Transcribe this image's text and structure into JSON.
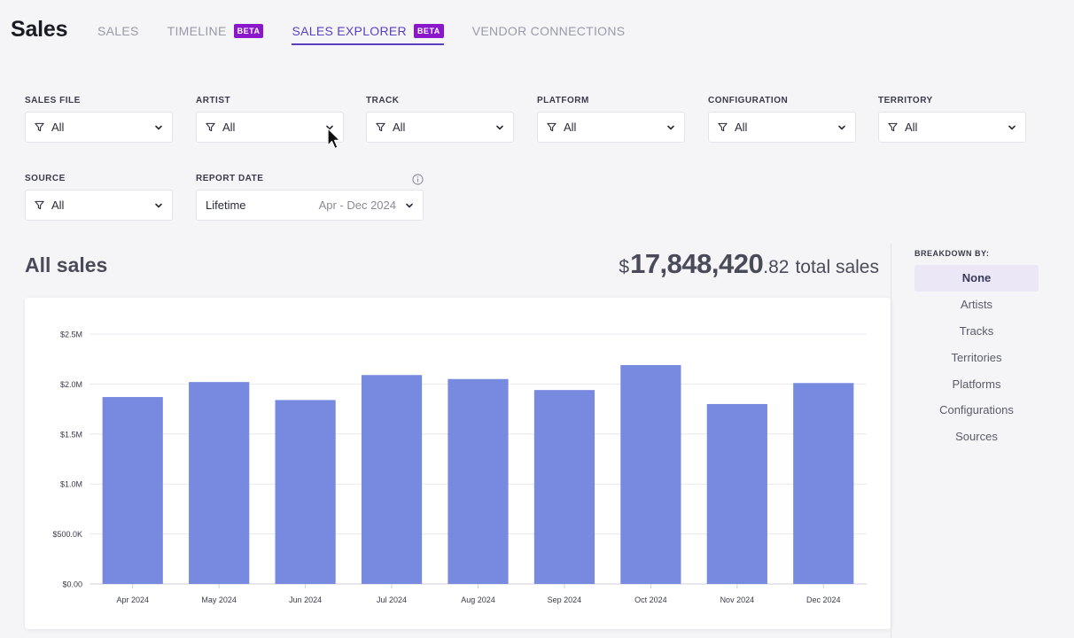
{
  "header": {
    "title": "Sales",
    "tabs": [
      {
        "label": "SALES",
        "badge": ""
      },
      {
        "label": "TIMELINE",
        "badge": "BETA"
      },
      {
        "label": "SALES EXPLORER",
        "badge": "BETA"
      },
      {
        "label": "VENDOR CONNECTIONS",
        "badge": ""
      }
    ],
    "active_tab": 2
  },
  "filters": {
    "sales_file": {
      "label": "SALES FILE",
      "value": "All"
    },
    "artist": {
      "label": "ARTIST",
      "value": "All"
    },
    "track": {
      "label": "TRACK",
      "value": "All"
    },
    "platform": {
      "label": "PLATFORM",
      "value": "All"
    },
    "configuration": {
      "label": "CONFIGURATION",
      "value": "All"
    },
    "territory": {
      "label": "TERRITORY",
      "value": "All"
    },
    "source": {
      "label": "SOURCE",
      "value": "All"
    },
    "report_date": {
      "label": "REPORT DATE",
      "value": "Lifetime",
      "range": "Apr - Dec 2024"
    }
  },
  "summary": {
    "title": "All sales",
    "currency": "$",
    "total_whole": "17,848,420",
    "total_cents": ".82",
    "total_label": "total sales"
  },
  "breakdown": {
    "label": "BREAKDOWN BY:",
    "items": [
      "None",
      "Artists",
      "Tracks",
      "Territories",
      "Platforms",
      "Configurations",
      "Sources"
    ],
    "active": 0
  },
  "colors": {
    "accent": "#5b3fc2",
    "beta_badge": "#8a17c9",
    "bar": "#7889e0"
  },
  "chart_data": {
    "type": "bar",
    "categories": [
      "Apr 2024",
      "May 2024",
      "Jun 2024",
      "Jul 2024",
      "Aug 2024",
      "Sep 2024",
      "Oct 2024",
      "Nov 2024",
      "Dec 2024"
    ],
    "values": [
      1870000,
      2020000,
      1840000,
      2090000,
      2050000,
      1940000,
      2190000,
      1800000,
      2010000
    ],
    "y_ticks": [
      0,
      500000,
      1000000,
      1500000,
      2000000,
      2500000
    ],
    "y_tick_labels": [
      "$0.00",
      "$500.0K",
      "$1.0M",
      "$1.5M",
      "$2.0M",
      "$2.5M"
    ],
    "ylim": [
      0,
      2500000
    ],
    "grid": true,
    "title": "",
    "xlabel": "",
    "ylabel": ""
  }
}
